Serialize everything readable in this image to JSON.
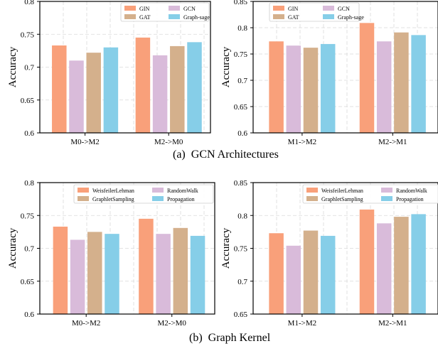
{
  "colors": [
    "#F9A07A",
    "#D9BBDA",
    "#D4B08C",
    "#86CEE8"
  ],
  "captions": {
    "a": "(a)  GCN Architectures",
    "b": "(b)  Graph Kernel"
  },
  "chart_data": [
    {
      "type": "bar",
      "ylabel": "Accuracy",
      "ylim": [
        0.6,
        0.8
      ],
      "yticks": [
        "0.6",
        "0.65",
        "0.7",
        "0.75",
        "0.8"
      ],
      "categories": [
        "M0->M2",
        "M2->M0"
      ],
      "series": [
        {
          "name": "GIN",
          "values": [
            0.733,
            0.745
          ]
        },
        {
          "name": "GCN",
          "values": [
            0.71,
            0.718
          ]
        },
        {
          "name": "GAT",
          "values": [
            0.722,
            0.732
          ]
        },
        {
          "name": "Graph-sage",
          "values": [
            0.73,
            0.738
          ]
        }
      ],
      "grid": true,
      "legend_position": "top-right"
    },
    {
      "type": "bar",
      "ylabel": "Accuracy",
      "ylim": [
        0.6,
        0.85
      ],
      "yticks": [
        "0.6",
        "0.65",
        "0.7",
        "0.75",
        "0.8",
        "0.85"
      ],
      "categories": [
        "M1->M2",
        "M2->M1"
      ],
      "series": [
        {
          "name": "GIN",
          "values": [
            0.774,
            0.809
          ]
        },
        {
          "name": "GCN",
          "values": [
            0.766,
            0.774
          ]
        },
        {
          "name": "GAT",
          "values": [
            0.762,
            0.791
          ]
        },
        {
          "name": "Graph-sage",
          "values": [
            0.769,
            0.786
          ]
        }
      ],
      "grid": true,
      "legend_position": "top-left"
    },
    {
      "type": "bar",
      "ylabel": "Accuracy",
      "ylim": [
        0.6,
        0.8
      ],
      "yticks": [
        "0.6",
        "0.65",
        "0.7",
        "0.75",
        "0.8"
      ],
      "categories": [
        "M0->M2",
        "M2->M0"
      ],
      "series": [
        {
          "name": "WeisfeilerLehman",
          "values": [
            0.733,
            0.745
          ]
        },
        {
          "name": "RandomWalk",
          "values": [
            0.713,
            0.722
          ]
        },
        {
          "name": "GraphletSampling",
          "values": [
            0.725,
            0.731
          ]
        },
        {
          "name": "Propagation",
          "values": [
            0.722,
            0.719
          ]
        }
      ],
      "grid": true,
      "legend_position": "top-right"
    },
    {
      "type": "bar",
      "ylabel": "Accuracy",
      "ylim": [
        0.65,
        0.85
      ],
      "yticks": [
        "0.65",
        "0.7",
        "0.75",
        "0.8",
        "0.85"
      ],
      "categories": [
        "M1->M2",
        "M2->M1"
      ],
      "series": [
        {
          "name": "WeisfeilerLehman",
          "values": [
            0.773,
            0.809
          ]
        },
        {
          "name": "RandomWalk",
          "values": [
            0.754,
            0.788
          ]
        },
        {
          "name": "GraphletSampling",
          "values": [
            0.777,
            0.798
          ]
        },
        {
          "name": "Propagation",
          "values": [
            0.769,
            0.802
          ]
        }
      ],
      "grid": true,
      "legend_position": "top-left"
    }
  ]
}
